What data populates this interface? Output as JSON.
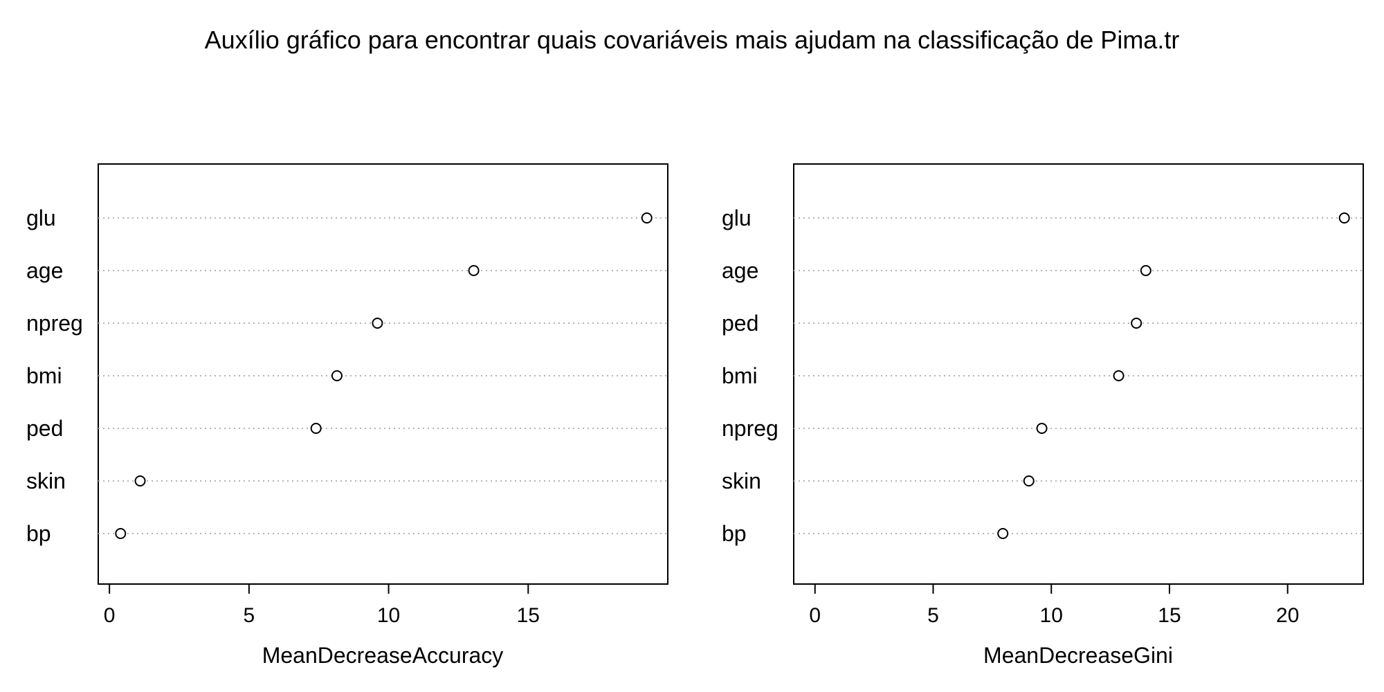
{
  "title": "Auxílio gráfico para encontrar quais covariáveis mais ajudam na classificação de Pima.tr",
  "chart_data": [
    {
      "type": "dotchart",
      "xlabel": "MeanDecreaseAccuracy",
      "xlim": [
        -0.4,
        20.0
      ],
      "xticks": [
        0,
        5,
        10,
        15
      ],
      "grid": "dotted horizontal lines per category",
      "categories": [
        "glu",
        "age",
        "npreg",
        "bmi",
        "ped",
        "skin",
        "bp"
      ],
      "values": [
        19.25,
        13.05,
        9.6,
        8.15,
        7.4,
        1.1,
        0.4
      ]
    },
    {
      "type": "dotchart",
      "xlabel": "MeanDecreaseGini",
      "xlim": [
        -0.9,
        23.2
      ],
      "xticks": [
        0,
        5,
        10,
        15,
        20
      ],
      "grid": "dotted horizontal lines per category",
      "categories": [
        "glu",
        "age",
        "ped",
        "bmi",
        "npreg",
        "skin",
        "bp"
      ],
      "values": [
        22.4,
        14.0,
        13.6,
        12.85,
        9.6,
        9.05,
        7.95
      ]
    }
  ]
}
